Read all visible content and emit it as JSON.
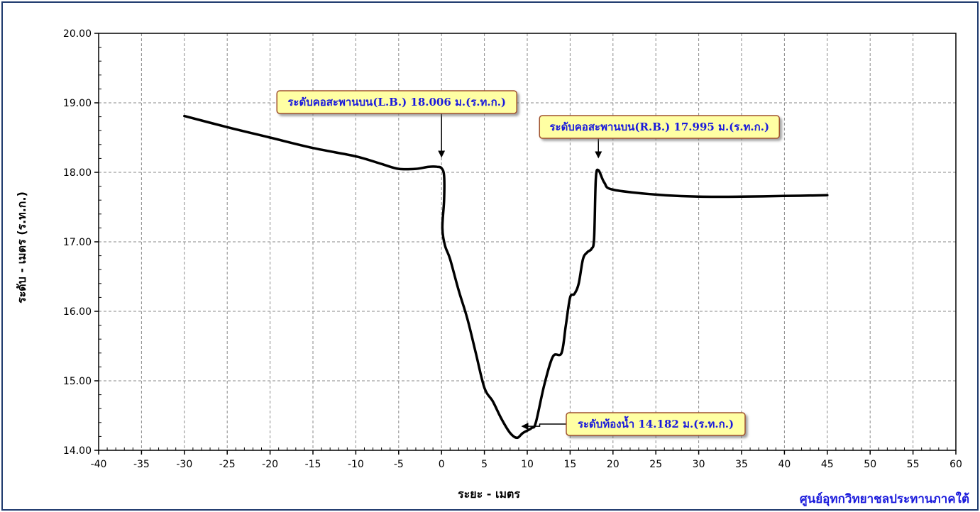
{
  "chart_data": {
    "type": "line",
    "xlabel": "ระยะ - เมตร",
    "ylabel": "ระดับ - เมตร (ร.ท.ก.)",
    "xlim": [
      -40,
      60
    ],
    "ylim": [
      14,
      20
    ],
    "xticks": [
      -40,
      -35,
      -30,
      -25,
      -20,
      -15,
      -10,
      -5,
      0,
      5,
      10,
      15,
      20,
      25,
      30,
      35,
      40,
      45,
      50,
      55,
      60
    ],
    "yticks": [
      "14.00",
      "15.00",
      "16.00",
      "17.00",
      "18.00",
      "19.00",
      "20.00"
    ],
    "grid": true,
    "series": [
      {
        "color": "#000000",
        "points": [
          [
            -30,
            18.81
          ],
          [
            -25,
            18.65
          ],
          [
            -20,
            18.5
          ],
          [
            -15,
            18.35
          ],
          [
            -10,
            18.23
          ],
          [
            -7,
            18.12
          ],
          [
            -5,
            18.05
          ],
          [
            -3,
            18.05
          ],
          [
            -1.5,
            18.08
          ],
          [
            -0.5,
            18.08
          ],
          [
            0,
            18.06
          ],
          [
            0.3,
            17.95
          ],
          [
            0.3,
            17.6
          ],
          [
            0.1,
            17.2
          ],
          [
            0.4,
            16.95
          ],
          [
            1,
            16.75
          ],
          [
            2,
            16.3
          ],
          [
            3,
            15.9
          ],
          [
            4,
            15.4
          ],
          [
            5,
            14.9
          ],
          [
            6,
            14.7
          ],
          [
            7,
            14.45
          ],
          [
            8,
            14.25
          ],
          [
            8.8,
            14.18
          ],
          [
            9.5,
            14.25
          ],
          [
            10.5,
            14.32
          ],
          [
            11,
            14.4
          ],
          [
            12,
            14.95
          ],
          [
            13,
            15.35
          ],
          [
            14,
            15.4
          ],
          [
            14.5,
            15.8
          ],
          [
            15,
            16.2
          ],
          [
            15.5,
            16.25
          ],
          [
            16,
            16.4
          ],
          [
            16.5,
            16.75
          ],
          [
            17,
            16.85
          ],
          [
            17.5,
            16.9
          ],
          [
            17.8,
            17.05
          ],
          [
            18,
            17.9
          ],
          [
            18.3,
            18.03
          ],
          [
            19,
            17.85
          ],
          [
            20,
            17.75
          ],
          [
            25,
            17.68
          ],
          [
            30,
            17.65
          ],
          [
            35,
            17.65
          ],
          [
            40,
            17.66
          ],
          [
            45,
            17.67
          ]
        ]
      }
    ],
    "annotations": [
      {
        "text": "ระดับคอสะพานบน(L.B.) 18.006 ม.(ร.ท.ก.)",
        "x": 0,
        "y": 18.006
      },
      {
        "text": "ระดับคอสะพานบน(R.B.) 17.995 ม.(ร.ท.ก.)",
        "x": 18.3,
        "y": 17.995
      },
      {
        "text": "ระดับท้องน้ำ 14.182 ม.(ร.ท.ก.)",
        "x": 8.8,
        "y": 14.182
      }
    ]
  },
  "footer": {
    "credit": "ศูนย์อุทกวิทยาชลประทานภาคใต้"
  },
  "colors": {
    "frame": "#1f3a6e",
    "callout_fill": "#ffffa3",
    "callout_border": "#a0522d",
    "callout_text": "#1a1adc",
    "line": "#000000",
    "grid": "#8a8a8a"
  }
}
